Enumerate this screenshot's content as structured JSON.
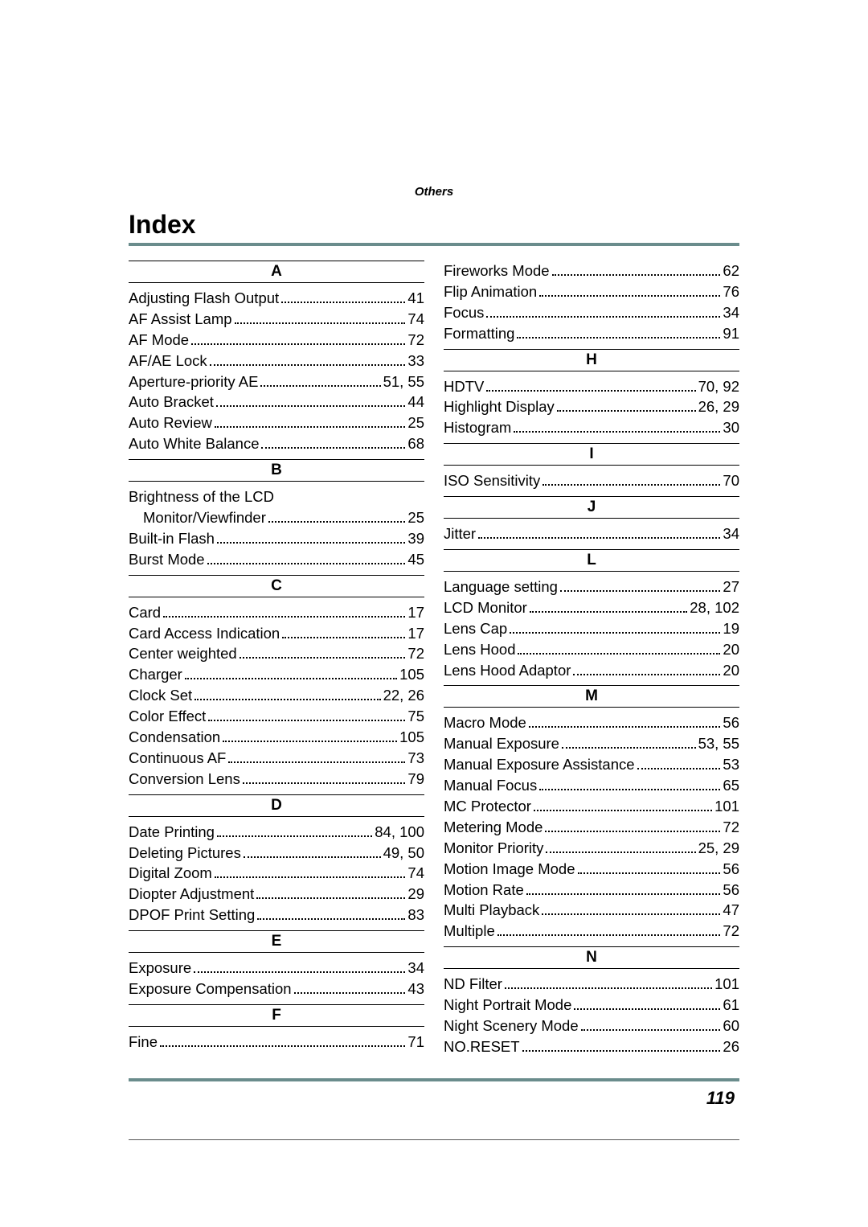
{
  "header_section": "Others",
  "title": "Index",
  "page_number": "119",
  "left": [
    {
      "letter": "A"
    },
    {
      "label": "Adjusting Flash Output",
      "pages": "41"
    },
    {
      "label": "AF Assist Lamp",
      "pages": "74"
    },
    {
      "label": "AF Mode",
      "pages": "72"
    },
    {
      "label": "AF/AE Lock",
      "pages": "33"
    },
    {
      "label": "Aperture-priority AE",
      "pages": "51, 55"
    },
    {
      "label": "Auto Bracket",
      "pages": "44"
    },
    {
      "label": "Auto Review",
      "pages": "25"
    },
    {
      "label": "Auto White Balance",
      "pages": "68"
    },
    {
      "letter": "B"
    },
    {
      "label": "Brightness of the LCD",
      "nopages": true
    },
    {
      "label": "Monitor/Viewfinder",
      "pages": "25",
      "sub": true
    },
    {
      "label": "Built-in Flash",
      "pages": "39"
    },
    {
      "label": "Burst Mode",
      "pages": "45"
    },
    {
      "letter": "C"
    },
    {
      "label": "Card",
      "pages": "17"
    },
    {
      "label": "Card Access Indication",
      "pages": "17"
    },
    {
      "label": "Center weighted",
      "pages": "72"
    },
    {
      "label": "Charger",
      "pages": "105"
    },
    {
      "label": "Clock Set",
      "pages": "22, 26"
    },
    {
      "label": "Color Effect",
      "pages": "75"
    },
    {
      "label": "Condensation",
      "pages": "105"
    },
    {
      "label": "Continuous AF",
      "pages": "73"
    },
    {
      "label": "Conversion Lens",
      "pages": "79"
    },
    {
      "letter": "D"
    },
    {
      "label": "Date Printing",
      "pages": "84, 100"
    },
    {
      "label": "Deleting Pictures",
      "pages": "49, 50"
    },
    {
      "label": "Digital Zoom",
      "pages": "74"
    },
    {
      "label": "Diopter Adjustment",
      "pages": "29"
    },
    {
      "label": "DPOF Print Setting",
      "pages": "83"
    },
    {
      "letter": "E"
    },
    {
      "label": "Exposure",
      "pages": "34"
    },
    {
      "label": "Exposure Compensation",
      "pages": "43"
    },
    {
      "letter": "F"
    },
    {
      "label": "Fine",
      "pages": "71"
    }
  ],
  "right": [
    {
      "label": "Fireworks Mode",
      "pages": "62"
    },
    {
      "label": "Flip Animation",
      "pages": "76"
    },
    {
      "label": "Focus",
      "pages": "34"
    },
    {
      "label": "Formatting",
      "pages": "91"
    },
    {
      "letter": "H"
    },
    {
      "label": "HDTV",
      "pages": "70, 92"
    },
    {
      "label": "Highlight Display",
      "pages": "26, 29"
    },
    {
      "label": "Histogram",
      "pages": "30"
    },
    {
      "letter": "I"
    },
    {
      "label": "ISO Sensitivity",
      "pages": "70"
    },
    {
      "letter": "J"
    },
    {
      "label": "Jitter",
      "pages": "34"
    },
    {
      "letter": "L"
    },
    {
      "label": "Language setting",
      "pages": "27"
    },
    {
      "label": "LCD Monitor",
      "pages": "28, 102"
    },
    {
      "label": "Lens Cap",
      "pages": "19"
    },
    {
      "label": "Lens Hood",
      "pages": "20"
    },
    {
      "label": "Lens Hood Adaptor",
      "pages": "20"
    },
    {
      "letter": "M"
    },
    {
      "label": "Macro Mode",
      "pages": "56"
    },
    {
      "label": "Manual Exposure",
      "pages": "53, 55"
    },
    {
      "label": "Manual Exposure Assistance",
      "pages": "53"
    },
    {
      "label": "Manual Focus",
      "pages": "65"
    },
    {
      "label": "MC Protector",
      "pages": "101"
    },
    {
      "label": "Metering Mode",
      "pages": "72"
    },
    {
      "label": "Monitor Priority",
      "pages": "25, 29"
    },
    {
      "label": "Motion Image Mode",
      "pages": "56"
    },
    {
      "label": "Motion Rate",
      "pages": "56"
    },
    {
      "label": "Multi Playback",
      "pages": "47"
    },
    {
      "label": "Multiple",
      "pages": "72"
    },
    {
      "letter": "N"
    },
    {
      "label": "ND Filter",
      "pages": "101"
    },
    {
      "label": "Night Portrait Mode",
      "pages": "61"
    },
    {
      "label": "Night Scenery Mode",
      "pages": "60"
    },
    {
      "label": "NO.RESET",
      "pages": "26"
    }
  ]
}
